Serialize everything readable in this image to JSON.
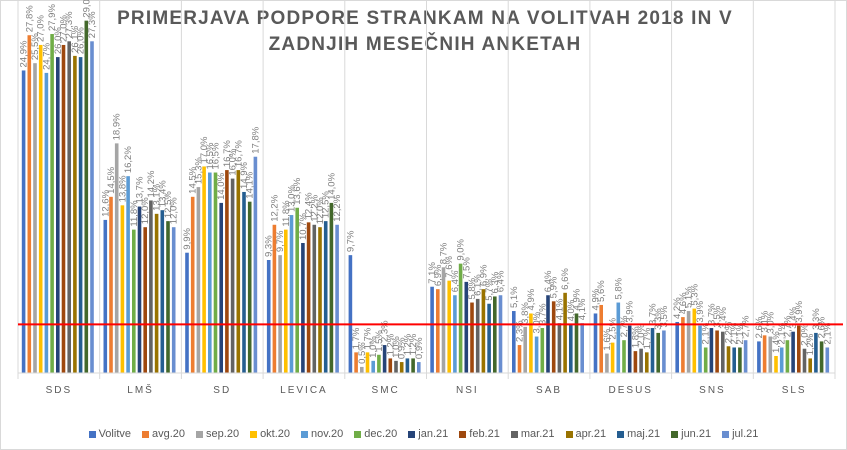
{
  "chart_data": {
    "type": "bar",
    "title": "PRIMERJAVA PODPORE STRANKAM NA VOLITVAH 2018 IN V ZADNJIH MESEČNIH ANKETAH",
    "xlabel": "",
    "ylabel": "",
    "ylim": [
      0,
      30
    ],
    "grid": false,
    "legend_position": "bottom",
    "threshold_line": {
      "value": 4,
      "color": "#ff0000"
    },
    "categories": [
      "SDS",
      "LMŠ",
      "SD",
      "LEVICA",
      "SMC",
      "NSI",
      "SAB",
      "DESUS",
      "SNS",
      "SLS"
    ],
    "series": [
      {
        "name": "Volitve",
        "color": "#4472c4",
        "values": [
          24.9,
          12.6,
          9.9,
          9.3,
          9.7,
          7.1,
          5.1,
          4.9,
          4.2,
          2.6
        ]
      },
      {
        "name": "avg.20",
        "color": "#ed7d31",
        "values": [
          27.8,
          14.5,
          14.5,
          12.2,
          1.7,
          6.9,
          2.3,
          5.6,
          4.6,
          3.1
        ]
      },
      {
        "name": "sep.20",
        "color": "#a5a5a5",
        "values": [
          25.5,
          18.9,
          15.3,
          9.7,
          0.5,
          8.7,
          3.8,
          1.6,
          5.1,
          3.0
        ]
      },
      {
        "name": "okt.20",
        "color": "#ffc000",
        "values": [
          27.0,
          13.8,
          17.0,
          11.8,
          1.7,
          7.6,
          4.9,
          2.5,
          5.3,
          1.4
        ]
      },
      {
        "name": "nov.20",
        "color": "#5b9bd5",
        "values": [
          24.7,
          16.2,
          16.5,
          13.0,
          1.0,
          6.4,
          3.0,
          5.8,
          3.9,
          2.1
        ]
      },
      {
        "name": "dec.20",
        "color": "#70ad47",
        "values": [
          27.9,
          11.8,
          16.5,
          13.6,
          1.5,
          9.0,
          3.7,
          2.7,
          2.1,
          2.7
        ]
      },
      {
        "name": "jan.21",
        "color": "#264478",
        "values": [
          26.0,
          13.7,
          14.0,
          10.7,
          2.3,
          7.5,
          6.4,
          3.9,
          3.7,
          3.4
        ]
      },
      {
        "name": "feb.21",
        "color": "#9e480e",
        "values": [
          27.0,
          12.0,
          16.7,
          12.4,
          1.2,
          5.8,
          5.9,
          1.8,
          3.5,
          3.9
        ]
      },
      {
        "name": "mar.21",
        "color": "#636363",
        "values": [
          27.3,
          14.2,
          16.0,
          12.2,
          1.0,
          6.1,
          4.1,
          2.0,
          3.4,
          2.0
        ]
      },
      {
        "name": "apr.21",
        "color": "#997300",
        "values": [
          26.1,
          13.1,
          16.7,
          12.0,
          0.9,
          6.9,
          6.6,
          1.7,
          2.2,
          1.2
        ]
      },
      {
        "name": "maj.21",
        "color": "#255e91",
        "values": [
          26.0,
          13.4,
          14.9,
          12.5,
          1.2,
          5.7,
          4.0,
          3.7,
          2.1,
          3.3
        ]
      },
      {
        "name": "jun.21",
        "color": "#43682b",
        "values": [
          29.0,
          12.5,
          14.1,
          14.0,
          1.2,
          6.3,
          4.9,
          3.3,
          2.1,
          2.6
        ]
      },
      {
        "name": "jul.21",
        "color": "#698ed0",
        "values": [
          27.3,
          12.0,
          17.8,
          12.2,
          0.9,
          6.4,
          4.1,
          3.5,
          2.7,
          2.1
        ]
      }
    ]
  }
}
